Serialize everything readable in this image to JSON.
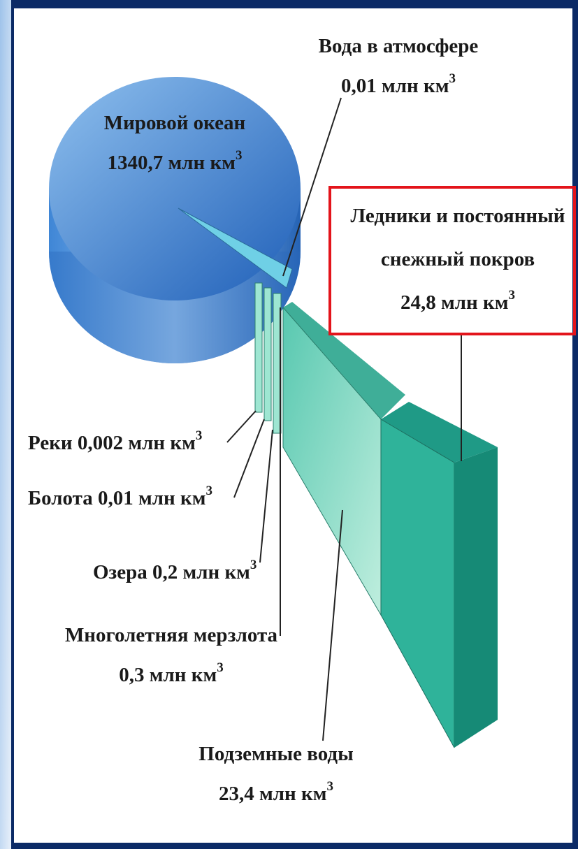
{
  "labels": [
    {
      "lines": [
        "Вода в атмосфере",
        "0,01 млн км"
      ],
      "exp": "3"
    },
    {
      "lines": [
        "Мировой океан",
        "1340,7 млн км"
      ],
      "exp": "3"
    },
    {
      "lines": [
        "Ледники и постоянный",
        "снежный покров",
        "24,8 млн км"
      ],
      "exp": "3"
    },
    {
      "lines": [
        "Реки 0,002 млн км"
      ],
      "exp": "3"
    },
    {
      "lines": [
        "Болота 0,01 млн км"
      ],
      "exp": "3"
    },
    {
      "lines": [
        "Озера 0,2 млн км"
      ],
      "exp": "3"
    },
    {
      "lines": [
        "Многолетняя мерзлота",
        "0,3 млн км"
      ],
      "exp": "3"
    },
    {
      "lines": [
        "Подземные воды",
        "23,4 млн км"
      ],
      "exp": "3"
    }
  ]
}
